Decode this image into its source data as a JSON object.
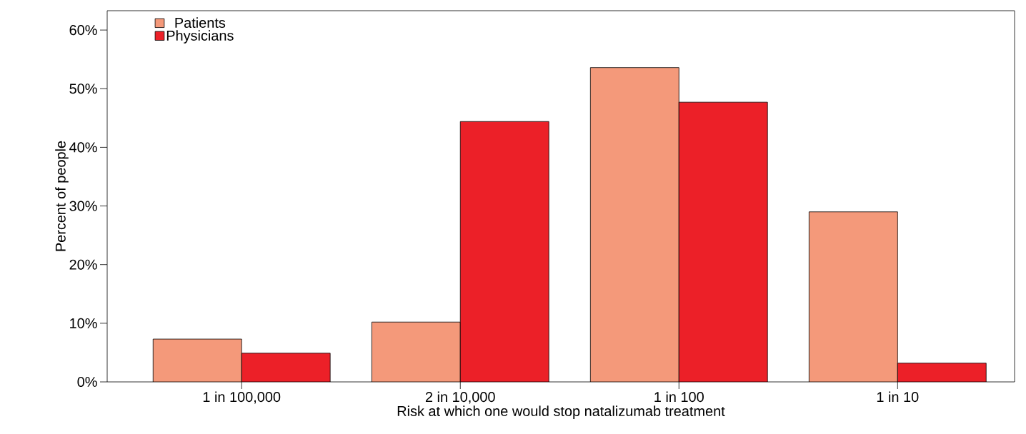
{
  "chart_data": {
    "type": "bar",
    "xlabel": "Risk at which one would stop natalizumab treatment",
    "ylabel": "Percent of people",
    "categories": [
      "1 in 100,000",
      "2 in 10,000",
      "1 in 100",
      "1 in 10"
    ],
    "series": [
      {
        "name": "Patients",
        "color": "#f4997a",
        "values": [
          7.3,
          10.2,
          53.6,
          29.0
        ]
      },
      {
        "name": "Physicians",
        "color": "#ec2028",
        "values": [
          4.9,
          44.4,
          47.7,
          3.2
        ]
      }
    ],
    "ylim": [
      0,
      63.3
    ],
    "yticks": [
      {
        "value": 0,
        "label": "0%"
      },
      {
        "value": 10,
        "label": "10%"
      },
      {
        "value": 20,
        "label": "20%"
      },
      {
        "value": 30,
        "label": "30%"
      },
      {
        "value": 40,
        "label": "40%"
      },
      {
        "value": 50,
        "label": "50%"
      },
      {
        "value": 60,
        "label": "60%"
      }
    ],
    "grid": false,
    "legend": "top left"
  }
}
